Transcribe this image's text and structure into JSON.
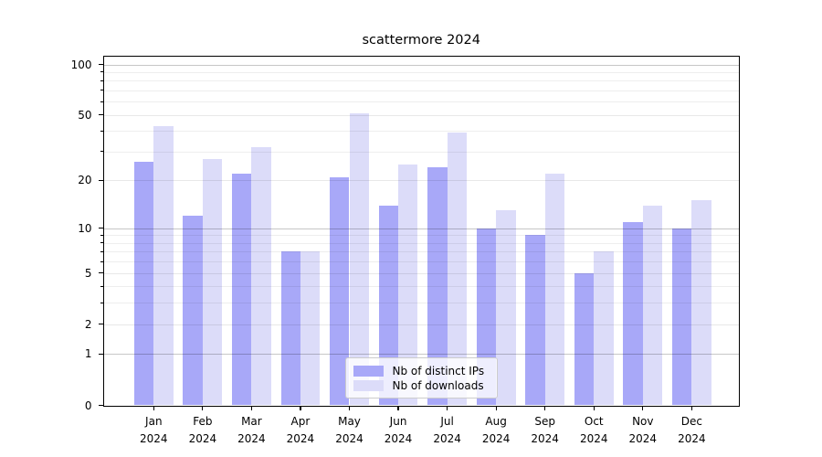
{
  "title": "scattermore 2024",
  "chart_data": {
    "type": "bar",
    "title": "scattermore 2024",
    "categories": [
      "Jan 2024",
      "Feb 2024",
      "Mar 2024",
      "Apr 2024",
      "May 2024",
      "Jun 2024",
      "Jul 2024",
      "Aug 2024",
      "Sep 2024",
      "Oct 2024",
      "Nov 2024",
      "Dec 2024"
    ],
    "x_tick_months": [
      "Jan",
      "Feb",
      "Mar",
      "Apr",
      "May",
      "Jun",
      "Jul",
      "Aug",
      "Sep",
      "Oct",
      "Nov",
      "Dec"
    ],
    "x_tick_year": "2024",
    "series": [
      {
        "name": "Nb of distinct IPs",
        "color": "#a8a8f8",
        "values": [
          26,
          12,
          22,
          7,
          21,
          14,
          24,
          10,
          9,
          5,
          11,
          10
        ]
      },
      {
        "name": "Nb of downloads",
        "color": "#dcdcf9",
        "values": [
          43,
          27,
          32,
          7,
          51,
          25,
          39,
          13,
          22,
          7,
          14,
          15
        ]
      }
    ],
    "yscale": "log1p",
    "ylim": [
      0,
      112
    ],
    "y_tick_labels": [
      "0",
      "1",
      "2",
      "5",
      "10",
      "20",
      "50",
      "100"
    ],
    "y_major_ticks": [
      0,
      1,
      2,
      5,
      10,
      20,
      50,
      100
    ],
    "y_decade_ticks": [
      1,
      10,
      100
    ],
    "y_mid_ticks": [
      2,
      5,
      20,
      50
    ],
    "y_minor_ticks": [
      3,
      4,
      6,
      7,
      8,
      9,
      30,
      40,
      60,
      70,
      80,
      90
    ],
    "grid": true,
    "legend_position": "lower center inside axes"
  },
  "colors": {
    "background": "#ffffff",
    "spine": "#000000",
    "text": "#000000",
    "grid_decade": "#c7c7c7",
    "grid_mid": "#e8e8e8",
    "grid_minor": "#efefef",
    "legend_border": "#cccccc"
  }
}
